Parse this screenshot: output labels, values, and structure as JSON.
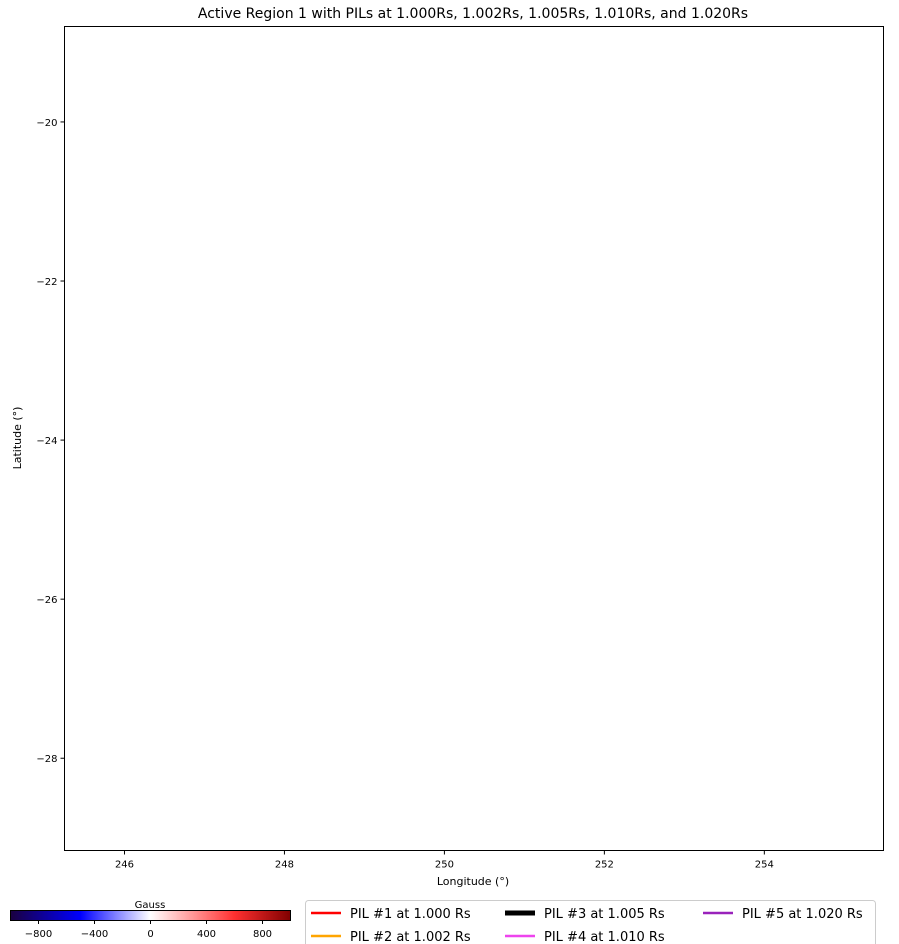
{
  "chart_data": {
    "type": "line",
    "title": "Active Region 1 with PILs at 1.000Rs, 1.002Rs, 1.005Rs, 1.010Rs, and 1.020Rs",
    "xlabel": "Longitude (°)",
    "ylabel": "Latitude (°)",
    "xlim": [
      245.25,
      255.49
    ],
    "ylim": [
      -29.16,
      -18.8
    ],
    "xticks": [
      246,
      248,
      250,
      252,
      254
    ],
    "yticks": [
      -20,
      -22,
      -24,
      -26,
      -28
    ],
    "grid": false,
    "series": [
      {
        "name": "PIL #1 at 1.000 Rs",
        "color": "#ff0000",
        "points": []
      },
      {
        "name": "PIL #2 at 1.002 Rs",
        "color": "#ffa500",
        "points": []
      },
      {
        "name": "PIL #3 at 1.005 Rs",
        "color": "#000000",
        "points": []
      },
      {
        "name": "PIL #4 at 1.010 Rs",
        "color": "#ee44ee",
        "points": []
      },
      {
        "name": "PIL #5 at 1.020 Rs",
        "color": "#9922bb",
        "points": []
      }
    ],
    "legend_placement": "bottom-right",
    "colorbar": {
      "label": "Gauss",
      "range": [
        -1000,
        1000
      ],
      "ticks": [
        -800,
        -400,
        0,
        400,
        800
      ],
      "colors": [
        "#1a0040",
        "#0000ff",
        "#ffffff",
        "#ff3030",
        "#800000"
      ]
    }
  }
}
